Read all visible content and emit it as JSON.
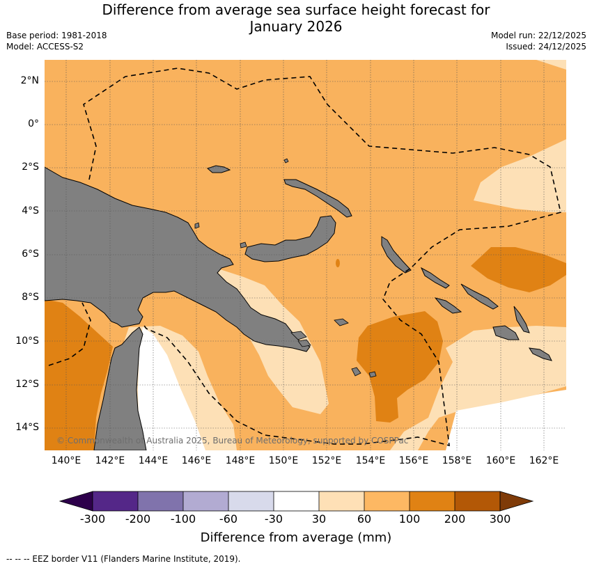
{
  "header": {
    "title_line1": "Difference from average sea surface height forecast for",
    "title_line2": "January 2026",
    "base_period": "Base period: 1981-2018",
    "model": "Model: ACCESS-S2",
    "model_run": "Model run: 22/12/2025",
    "issued": "Issued: 24/12/2025"
  },
  "map": {
    "lat_labels": [
      "2°N",
      "0°",
      "2°S",
      "4°S",
      "6°S",
      "8°S",
      "10°S",
      "12°S",
      "14°S"
    ],
    "lon_labels": [
      "140°E",
      "142°E",
      "144°E",
      "146°E",
      "148°E",
      "150°E",
      "152°E",
      "154°E",
      "156°E",
      "158°E",
      "160°E",
      "162°E"
    ],
    "extent": {
      "lon_min": 139,
      "lon_max": 163,
      "lat_min": -15,
      "lat_max": 3
    },
    "copyright": "© Commonwealth of Australia 2025, Bureau of Meteorology, supported by COSPPac",
    "colors": {
      "land": "#808080",
      "anomaly_30_60": "#fde0b6",
      "anomaly_60_100": "#f9b25d",
      "anomaly_100_200": "#e08214"
    }
  },
  "colorbar": {
    "ticks": [
      "-300",
      "-200",
      "-100",
      "-60",
      "-30",
      "30",
      "60",
      "100",
      "200",
      "300"
    ],
    "colors": [
      "#2d004b",
      "#542788",
      "#8073ac",
      "#b2abd2",
      "#d8daeb",
      "#ffffff",
      "#fee0b6",
      "#fdb863",
      "#e08214",
      "#b35806",
      "#7f3b08"
    ],
    "label": "Difference from average (mm)"
  },
  "footer": {
    "eez_note": "--  --  -- EEZ border V11 (Flanders Marine Institute, 2019)."
  }
}
